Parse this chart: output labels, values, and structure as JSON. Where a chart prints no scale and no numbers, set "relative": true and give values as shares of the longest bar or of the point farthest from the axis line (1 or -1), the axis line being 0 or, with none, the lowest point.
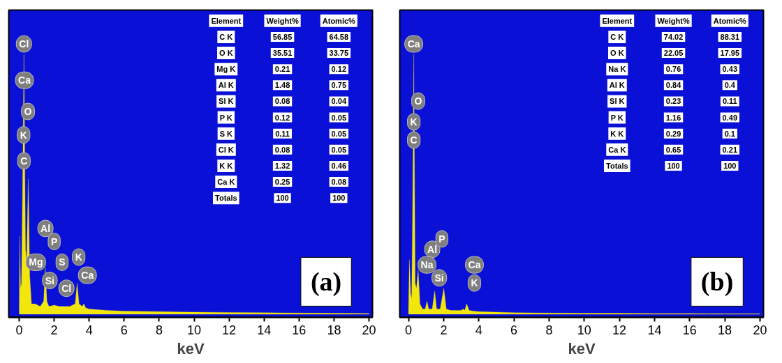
{
  "chart_data": [
    {
      "type": "area",
      "relative": true,
      "xlabel": "keV",
      "xlim": [
        -0.6,
        20.2
      ],
      "xticks": [
        0,
        2,
        4,
        6,
        8,
        10,
        12,
        14,
        16,
        18,
        20
      ],
      "tick_labels": "x",
      "grid": false,
      "series": [
        {
          "color": "#f2e60c",
          "x": [
            0,
            0.03,
            0.08,
            0.13,
            0.18,
            0.27,
            0.36,
            0.42,
            0.52,
            0.6,
            0.7,
            0.9,
            1.2,
            1.4,
            1.49,
            1.58,
            1.7,
            2.0,
            2.3,
            2.6,
            2.9,
            3.2,
            3.31,
            3.42,
            3.6,
            3.7,
            3.8,
            4.0,
            5,
            6,
            8,
            10,
            12,
            14,
            16,
            18,
            20
          ],
          "values": [
            0.02,
            0.3,
            0.1,
            0.12,
            0.4,
            1.0,
            0.25,
            0.2,
            0.52,
            0.15,
            0.04,
            0.04,
            0.03,
            0.05,
            0.18,
            0.05,
            0.03,
            0.035,
            0.03,
            0.03,
            0.03,
            0.04,
            0.12,
            0.04,
            0.03,
            0.04,
            0.025,
            0.02,
            0.015,
            0.012,
            0.01,
            0.008,
            0.007,
            0.006,
            0.005,
            0.004,
            0.003
          ]
        }
      ],
      "annotations": [
        "(a)",
        "Element",
        "Weight%",
        "Atomic%",
        "C K",
        "56.85",
        "64.58",
        "O K",
        "35.51",
        "33.75",
        "Mg K",
        "0.21",
        "0.12",
        "Al K",
        "1.48",
        "0.75",
        "SI K",
        "0.08",
        "0.04",
        "P K",
        "0.12",
        "0.05",
        "S K",
        "0.11",
        "0.05",
        "Cl K",
        "0.08",
        "0.05",
        "K K",
        "1.32",
        "0.46",
        "Ca K",
        "0.25",
        "0.08",
        "Totals",
        "100",
        "100",
        {
          "text": "Cl",
          "x": 0.27,
          "y": 1.04
        },
        {
          "text": "Ca",
          "x": 0.3,
          "y": 0.9
        },
        {
          "text": "O",
          "x": 0.5,
          "y": 0.78
        },
        {
          "text": "K",
          "x": 0.25,
          "y": 0.69
        },
        {
          "text": "C",
          "x": 0.27,
          "y": 0.59
        },
        {
          "text": "Al",
          "x": 1.5,
          "y": 0.33
        },
        {
          "text": "P",
          "x": 2.0,
          "y": 0.28
        },
        {
          "text": "Mg",
          "x": 0.95,
          "y": 0.2
        },
        {
          "text": "S",
          "x": 2.45,
          "y": 0.2
        },
        {
          "text": "Si",
          "x": 1.75,
          "y": 0.13
        },
        {
          "text": "K",
          "x": 3.4,
          "y": 0.22
        },
        {
          "text": "Ca",
          "x": 3.9,
          "y": 0.15
        },
        {
          "text": "Cl",
          "x": 2.7,
          "y": 0.1
        }
      ]
    },
    {
      "type": "area",
      "relative": true,
      "xlabel": "keV",
      "xlim": [
        -0.5,
        20.2
      ],
      "xticks": [
        0,
        2,
        4,
        6,
        8,
        10,
        12,
        14,
        16,
        18,
        20
      ],
      "tick_labels": "x",
      "grid": false,
      "series": [
        {
          "color": "#f2e60c",
          "x": [
            0,
            0.05,
            0.12,
            0.18,
            0.22,
            0.3,
            0.38,
            0.45,
            0.55,
            0.65,
            0.8,
            0.95,
            1.05,
            1.15,
            1.35,
            1.49,
            1.6,
            1.8,
            2.01,
            2.15,
            2.4,
            3.0,
            3.1,
            3.2,
            3.31,
            3.45,
            3.7,
            4.0,
            5,
            6,
            8,
            10,
            12,
            14,
            16,
            18,
            20
          ],
          "values": [
            0.01,
            0.21,
            0.08,
            0.06,
            0.3,
            1.0,
            0.12,
            0.1,
            0.17,
            0.04,
            0.02,
            0.02,
            0.05,
            0.02,
            0.02,
            0.09,
            0.02,
            0.02,
            0.1,
            0.02,
            0.015,
            0.015,
            0.02,
            0.015,
            0.04,
            0.015,
            0.012,
            0.01,
            0.008,
            0.006,
            0.005,
            0.004,
            0.004,
            0.003,
            0.003,
            0.002,
            0.002
          ]
        }
      ],
      "annotations": [
        "(b)",
        "Element",
        "Weight%",
        "Atomic%",
        "C K",
        "74.02",
        "88.31",
        "O K",
        "22.05",
        "17.95",
        "Na K",
        "0.76",
        "0.43",
        "Al K",
        "0.84",
        "0.4",
        "SI K",
        "0.23",
        "0.11",
        "P K",
        "1.16",
        "0.49",
        "K K",
        "0.29",
        "0.1",
        "Ca K",
        "0.65",
        "0.21",
        "Totals",
        "100",
        "100",
        {
          "text": "Ca",
          "x": 0.3,
          "y": 1.04
        },
        {
          "text": "O",
          "x": 0.55,
          "y": 0.82
        },
        {
          "text": "K",
          "x": 0.3,
          "y": 0.74
        },
        {
          "text": "C",
          "x": 0.3,
          "y": 0.67
        },
        {
          "text": "Al",
          "x": 1.35,
          "y": 0.25
        },
        {
          "text": "P",
          "x": 1.9,
          "y": 0.29
        },
        {
          "text": "Na",
          "x": 1.05,
          "y": 0.19
        },
        {
          "text": "Si",
          "x": 1.75,
          "y": 0.14
        },
        {
          "text": "Ca",
          "x": 3.75,
          "y": 0.19
        },
        {
          "text": "K",
          "x": 3.75,
          "y": 0.12
        }
      ]
    }
  ]
}
